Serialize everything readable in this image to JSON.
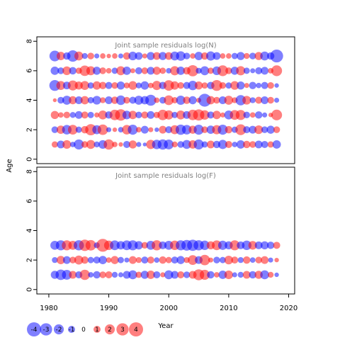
{
  "chart_data": {
    "type": "scatter",
    "subtype": "bubble",
    "xlabel": "Year",
    "ylabel": "Age",
    "xlim": [
      1978,
      2021
    ],
    "xticks": [
      1980,
      1990,
      2000,
      2010,
      2020
    ],
    "colors": {
      "positive": "#ff0000",
      "negative": "#0000ff",
      "alpha": 0.5
    },
    "size_scale_max_abs": 4,
    "panels": [
      {
        "title": "Joint sample residuals log(N)",
        "ylim": [
          -0.3,
          8.3
        ],
        "yticks": [
          0,
          2,
          4,
          6,
          8
        ],
        "ages": [
          1,
          2,
          3,
          4,
          5,
          6,
          7
        ],
        "years": [
          1981,
          2018
        ],
        "residuals": [
          [
            0.8,
            -1.2,
            1.5,
            -0.6,
            -2.0,
            0.9,
            1.6,
            -0.7,
            -1.5,
            2.1,
            0.6,
            0.4,
            -1.0,
            1.3,
            -0.5,
            -0.3,
            1.7,
            -1.8,
            -2.1,
            -1.9,
            0.7,
            -0.9,
            -1.6,
            1.4,
            -2.0,
            -0.8,
            1.2,
            -1.1,
            -1.7,
            1.0,
            -0.6,
            -1.4,
            1.1,
            0.9,
            -1.2,
            -1.0,
            0.8,
            -1.4
          ],
          [
            -0.9,
            1.4,
            -1.8,
            1.9,
            -0.8,
            1.1,
            2.5,
            -1.6,
            2.2,
            -0.5,
            0.4,
            -0.6,
            1.8,
            -2.0,
            0.6,
            -1.2,
            0.5,
            -0.4,
            1.2,
            -1.0,
            1.6,
            -2.1,
            -1.8,
            1.3,
            -2.0,
            0.9,
            -1.4,
            1.7,
            -2.0,
            1.1,
            -0.8,
            2.3,
            -1.0,
            -1.2,
            1.5,
            -0.9,
            -1.3,
            0.9
          ],
          [
            1.3,
            0.6,
            0.9,
            -0.7,
            -1.2,
            1.0,
            -0.8,
            0.5,
            1.6,
            -1.1,
            2.2,
            2.6,
            -1.5,
            1.4,
            -0.9,
            1.0,
            -1.2,
            0.8,
            2.2,
            1.7,
            -0.8,
            1.6,
            -1.2,
            2.2,
            2.5,
            1.8,
            -1.0,
            1.4,
            0.5,
            -1.6,
            1.9,
            2.0,
            -0.9,
            0.6,
            -1.1,
            -0.5,
            0.4,
            2.3
          ],
          [
            0.3,
            -0.9,
            -1.6,
            1.3,
            -1.2,
            1.4,
            -0.8,
            -1.5,
            0.7,
            -1.2,
            1.1,
            -1.8,
            0.9,
            -1.0,
            -1.6,
            -1.4,
            -2.4,
            0.6,
            -0.9,
            1.9,
            0.8,
            -1.7,
            1.1,
            -1.3,
            0.5,
            -3.3,
            1.4,
            0.9,
            -1.2,
            1.6,
            0.7,
            -2.1,
            1.5,
            -0.7,
            1.0,
            -1.2,
            0.9,
            -0.5
          ],
          [
            -2.4,
            1.6,
            -1.2,
            2.0,
            1.3,
            1.6,
            -0.8,
            1.4,
            1.1,
            -1.0,
            0.9,
            -1.3,
            0.7,
            1.5,
            -0.7,
            -1.4,
            0.6,
            1.7,
            -1.1,
            2.2,
            1.4,
            0.9,
            -1.0,
            -1.8,
            1.3,
            0.8,
            -1.1,
            2.4,
            0.9,
            -0.8,
            1.5,
            -1.3,
            0.5,
            -1.1,
            -0.6,
            -1.0,
            0.9,
            -0.4
          ],
          [
            -1.4,
            -0.9,
            1.5,
            -1.1,
            0.8,
            2.2,
            1.6,
            -1.3,
            0.9,
            0.6,
            -0.8,
            1.6,
            -1.4,
            0.5,
            -1.0,
            0.9,
            -1.2,
            1.3,
            0.8,
            -0.6,
            1.7,
            -1.4,
            1.1,
            2.5,
            -0.7,
            -1.6,
            0.8,
            -1.5,
            2.3,
            0.9,
            -1.3,
            1.7,
            -0.8,
            -0.5,
            -1.0,
            -1.2,
            0.6,
            2.3
          ],
          [
            -2.3,
            1.4,
            -1.1,
            -2.6,
            1.6,
            -0.7,
            0.9,
            -0.5,
            0.6,
            0.4,
            0.6,
            -0.5,
            1.1,
            -1.5,
            -1.2,
            0.5,
            -1.3,
            1.2,
            -1.3,
            1.2,
            -1.6,
            -1.8,
            -0.9,
            0.6,
            -1.4,
            1.1,
            -1.7,
            -1.2,
            0.6,
            0.6,
            -0.8,
            -1.3,
            0.7,
            -0.9,
            1.3,
            -1.6,
            -1.1,
            -3.3
          ]
        ]
      },
      {
        "title": "Joint sample residuals log(F)",
        "ylim": [
          -0.3,
          8.3
        ],
        "yticks": [
          0,
          2,
          4,
          6,
          8
        ],
        "ages": [
          1,
          2,
          3
        ],
        "years": [
          1981,
          2018
        ],
        "residuals": [
          [
            -1.3,
            -2.2,
            -1.9,
            1.2,
            -1.0,
            2.1,
            -0.6,
            -1.1,
            0.9,
            1.0,
            -0.7,
            -0.5,
            -1.2,
            -1.6,
            0.8,
            -1.3,
            1.4,
            -1.0,
            0.5,
            -1.6,
            -1.2,
            1.0,
            -0.9,
            1.2,
            2.4,
            2.0,
            -1.1,
            0.6,
            -1.4,
            1.5,
            -0.5,
            -0.7,
            1.2,
            -1.1,
            1.3,
            -1.6,
            0.7,
            -0.4
          ],
          [
            -0.7,
            1.4,
            -1.2,
            0.9,
            1.6,
            1.1,
            -0.8,
            -1.0,
            -1.4,
            0.6,
            1.3,
            -0.8,
            -0.5,
            1.2,
            0.7,
            -1.0,
            1.0,
            -0.6,
            1.1,
            0.8,
            -1.0,
            -1.3,
            0.7,
            1.9,
            -1.2,
            2.2,
            0.5,
            -0.9,
            -0.8,
            1.5,
            1.0,
            -0.7,
            1.1,
            -0.6,
            0.9,
            1.2,
            -0.5,
            0.4
          ],
          [
            -1.6,
            -2.0,
            2.0,
            1.6,
            -2.1,
            2.6,
            2.2,
            -0.7,
            3.3,
            1.8,
            -1.9,
            -1.4,
            -1.9,
            -2.0,
            -1.4,
            0.9,
            -1.6,
            2.1,
            -1.2,
            -1.6,
            1.8,
            -2.0,
            -2.3,
            -2.5,
            -2.1,
            -1.8,
            1.3,
            1.9,
            -1.7,
            -1.3,
            2.0,
            -1.2,
            -1.8,
            1.5,
            -1.2,
            -1.3,
            -1.1,
            1.0
          ]
        ]
      }
    ],
    "legend": {
      "values": [
        -4,
        -3,
        -2,
        -1,
        0,
        1,
        2,
        3,
        4
      ],
      "labels": [
        "-4",
        "-3",
        "-2",
        "-1",
        "0",
        "1",
        "2",
        "3",
        "4"
      ]
    }
  }
}
